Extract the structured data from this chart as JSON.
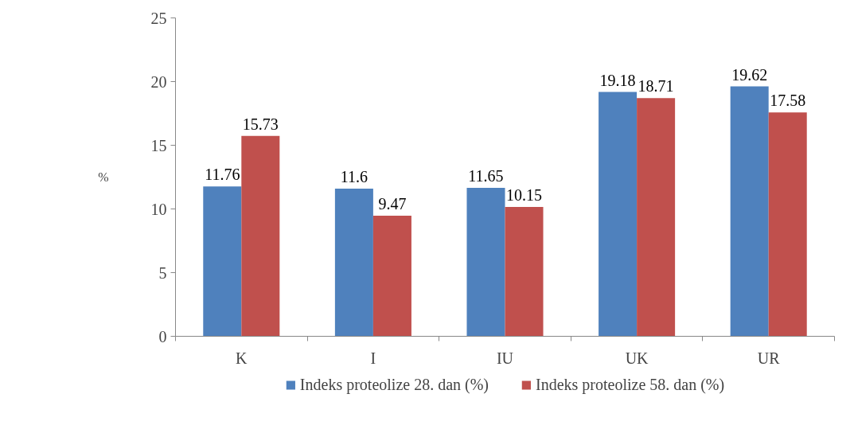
{
  "chart_data": {
    "type": "bar",
    "ylabel": "%",
    "categories": [
      "K",
      "I",
      "IU",
      "UK",
      "UR"
    ],
    "series": [
      {
        "name": "Indeks proteolize 28. dan (%)",
        "color": "#4f81bd",
        "values": [
          11.76,
          11.6,
          11.65,
          19.18,
          19.62
        ]
      },
      {
        "name": "Indeks proteolize 58. dan (%)",
        "color": "#c0504d",
        "values": [
          15.73,
          9.47,
          10.15,
          18.71,
          17.58
        ]
      }
    ],
    "ylim": [
      0,
      25
    ],
    "yticks": [
      0,
      5,
      10,
      15,
      20,
      25
    ],
    "grid": false,
    "legend": "bottom",
    "data_labels": true
  }
}
